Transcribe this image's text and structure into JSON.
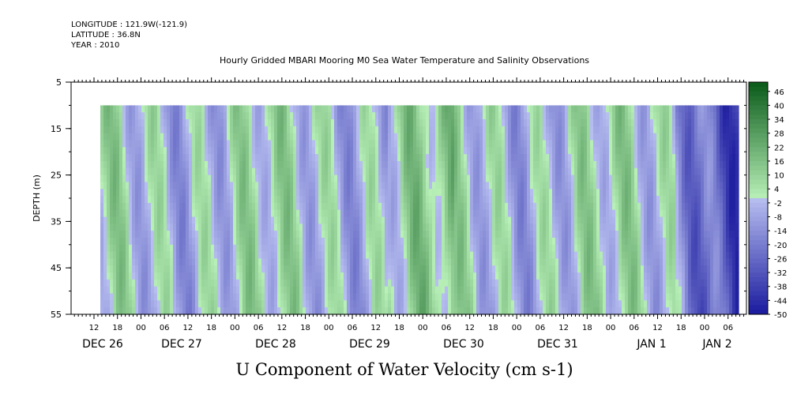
{
  "header": {
    "longitude": "LONGITUDE : 121.9W(-121.9)",
    "latitude": "LATITUDE : 36.8N",
    "year": "YEAR : 2010"
  },
  "chart_data": {
    "type": "heatmap",
    "title": "Hourly Gridded MBARI Mooring M0 Sea Water Temperature and Salinity Observations",
    "xlabel": "U Component of Water Velocity (cm s-1)",
    "ylabel": "DEPTH (m)",
    "ylim": [
      5,
      55
    ],
    "y_inverted": true,
    "y_ticks": [
      5,
      15,
      25,
      35,
      45,
      55
    ],
    "x_hour_ticks": [
      "12",
      "18",
      "00",
      "06",
      "12",
      "18",
      "00",
      "06",
      "12",
      "18",
      "00",
      "06",
      "12",
      "18",
      "00",
      "06",
      "12",
      "18",
      "00",
      "06",
      "12",
      "18",
      "00",
      "06",
      "12",
      "18",
      "00",
      "06"
    ],
    "x_day_labels": [
      "DEC 26",
      "DEC 27",
      "DEC 28",
      "DEC 29",
      "DEC 30",
      "DEC 31",
      "JAN  1",
      "JAN  2"
    ],
    "data_depth_range": [
      10,
      55
    ],
    "colorbar_levels": [
      "46",
      "40",
      "34",
      "28",
      "22",
      "16",
      "10",
      "4",
      "-2",
      "-8",
      "-14",
      "-20",
      "-26",
      "-32",
      "-38",
      "-44",
      "-50"
    ],
    "colorbar_range": [
      -50,
      50
    ],
    "colors": {
      "negative_dark": "#1a1a9e",
      "negative_light": "#b8bff0",
      "positive_light": "#b8f0b8",
      "positive_dark": "#0a5a1a"
    }
  }
}
